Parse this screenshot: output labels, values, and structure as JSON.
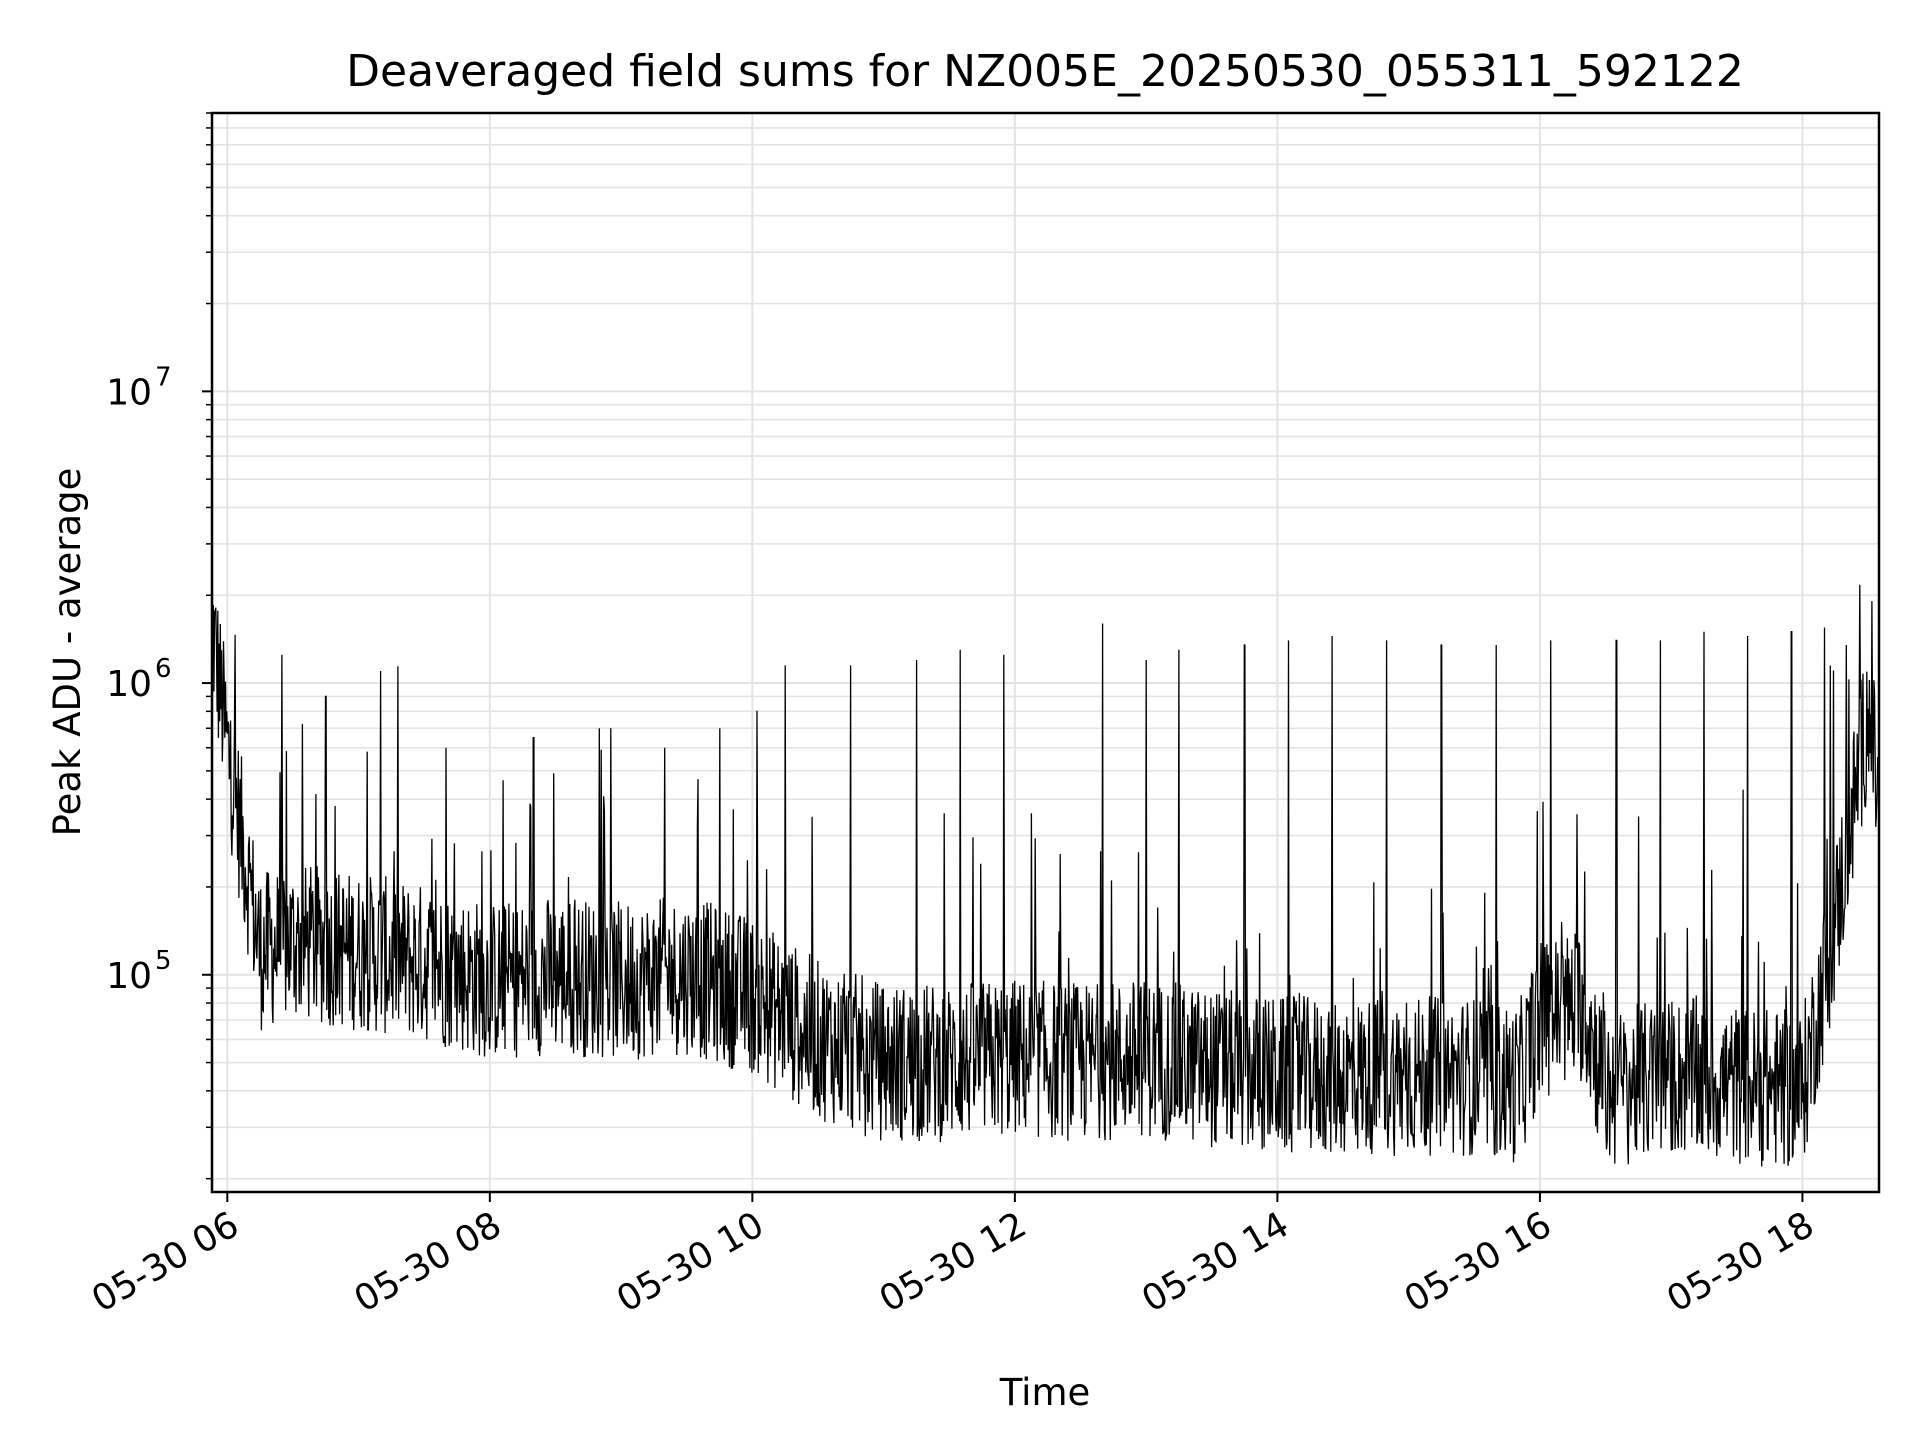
{
  "chart_data": {
    "type": "line",
    "title": "Deaveraged field sums for NZ005E_20250530_055311_592122",
    "xlabel": "Time",
    "ylabel": "Peak ADU - average",
    "yscale": "log",
    "ylim": [
      18000,
      90000000
    ],
    "xlim": [
      "2025-05-30 05:53",
      "2025-05-30 18:35"
    ],
    "grid": true,
    "x_ticks": [
      "05-30 06",
      "05-30 08",
      "05-30 10",
      "05-30 12",
      "05-30 14",
      "05-30 16",
      "05-30 18"
    ],
    "x_tick_times": [
      "2025-05-30 06:00",
      "2025-05-30 08:00",
      "2025-05-30 10:00",
      "2025-05-30 12:00",
      "2025-05-30 14:00",
      "2025-05-30 16:00",
      "2025-05-30 18:00"
    ],
    "y_ticks": [
      {
        "base": "10",
        "exp": "5",
        "value": 100000
      },
      {
        "base": "10",
        "exp": "6",
        "value": 1000000
      },
      {
        "base": "10",
        "exp": "7",
        "value": 10000000
      }
    ],
    "series": [
      {
        "color": "#000000",
        "x": [
          "2025-05-30 05:53",
          "2025-05-30 06:00",
          "2025-05-30 06:15",
          "2025-05-30 06:30",
          "2025-05-30 07:00",
          "2025-05-30 07:30",
          "2025-05-30 08:00",
          "2025-05-30 08:30",
          "2025-05-30 09:00",
          "2025-05-30 09:30",
          "2025-05-30 10:00",
          "2025-05-30 10:30",
          "2025-05-30 11:00",
          "2025-05-30 11:30",
          "2025-05-30 12:00",
          "2025-05-30 12:30",
          "2025-05-30 13:00",
          "2025-05-30 13:30",
          "2025-05-30 14:00",
          "2025-05-30 14:30",
          "2025-05-30 15:00",
          "2025-05-30 15:30",
          "2025-05-30 15:50",
          "2025-05-30 16:00",
          "2025-05-30 16:20",
          "2025-05-30 16:30",
          "2025-05-30 17:00",
          "2025-05-30 17:30",
          "2025-05-30 18:00",
          "2025-05-30 18:15",
          "2025-05-30 18:30",
          "2025-05-30 18:35"
        ],
        "y": [
          1600000,
          600000,
          120000,
          130000,
          120000,
          110000,
          95000,
          100000,
          95000,
          100000,
          85000,
          60000,
          50000,
          50000,
          52000,
          50000,
          52000,
          48000,
          45000,
          45000,
          45000,
          45000,
          42000,
          70000,
          80000,
          40000,
          45000,
          42000,
          40000,
          150000,
          800000,
          400000
        ],
        "spikes": [
          [
            "2025-05-30 06:25",
            1250000
          ],
          [
            "2025-05-30 06:45",
            900000
          ],
          [
            "2025-05-30 07:10",
            1100000
          ],
          [
            "2025-05-30 07:40",
            600000
          ],
          [
            "2025-05-30 08:20",
            650000
          ],
          [
            "2025-05-30 08:50",
            700000
          ],
          [
            "2025-05-30 09:20",
            600000
          ],
          [
            "2025-05-30 09:45",
            700000
          ],
          [
            "2025-05-30 10:15",
            1150000
          ],
          [
            "2025-05-30 10:45",
            1150000
          ],
          [
            "2025-05-30 11:15",
            1200000
          ],
          [
            "2025-05-30 11:35",
            1300000
          ],
          [
            "2025-05-30 11:55",
            1250000
          ],
          [
            "2025-05-30 12:40",
            1600000
          ],
          [
            "2025-05-30 13:00",
            1200000
          ],
          [
            "2025-05-30 13:15",
            1300000
          ],
          [
            "2025-05-30 13:45",
            1350000
          ],
          [
            "2025-05-30 14:05",
            1400000
          ],
          [
            "2025-05-30 14:25",
            1450000
          ],
          [
            "2025-05-30 14:50",
            1400000
          ],
          [
            "2025-05-30 15:15",
            1350000
          ],
          [
            "2025-05-30 15:40",
            1350000
          ],
          [
            "2025-05-30 16:05",
            1400000
          ],
          [
            "2025-05-30 16:35",
            1400000
          ],
          [
            "2025-05-30 16:55",
            1400000
          ],
          [
            "2025-05-30 17:15",
            1500000
          ],
          [
            "2025-05-30 17:35",
            1450000
          ],
          [
            "2025-05-30 17:55",
            1500000
          ],
          [
            "2025-05-30 18:10",
            1550000
          ],
          [
            "2025-05-30 18:20",
            1350000
          ]
        ]
      }
    ]
  }
}
